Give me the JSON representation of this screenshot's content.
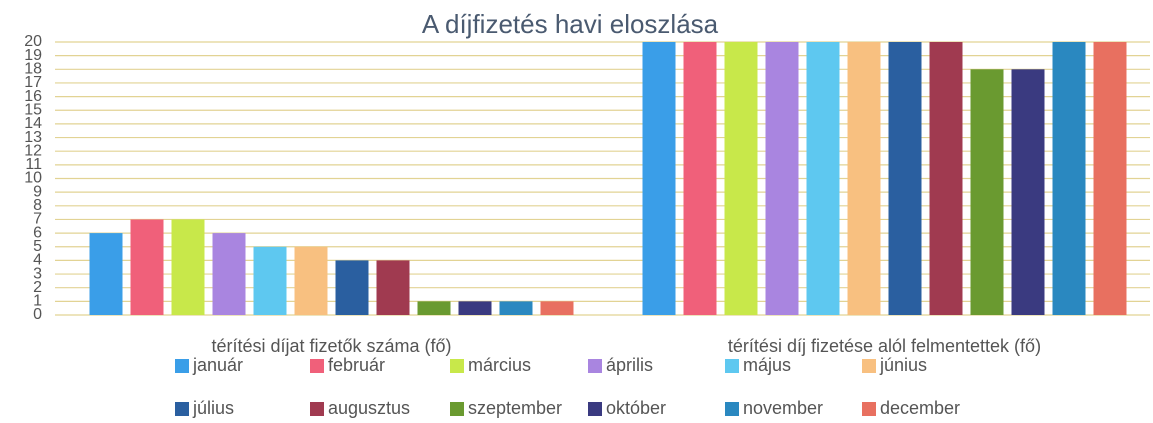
{
  "chart_data": {
    "type": "bar",
    "title": "A díjfizetés  havi eloszlása",
    "categories": [
      "térítési díjat fizetők száma (fő)",
      "térítési díj fizetése alól felmentettek (fő)"
    ],
    "series": [
      {
        "name": "január",
        "color": "#3a9ee8",
        "values": [
          6,
          20
        ]
      },
      {
        "name": "február",
        "color": "#f0607a",
        "values": [
          7,
          20
        ]
      },
      {
        "name": "március",
        "color": "#c8e84a",
        "values": [
          7,
          20
        ]
      },
      {
        "name": "április",
        "color": "#a985e0",
        "values": [
          6,
          20
        ]
      },
      {
        "name": "május",
        "color": "#5ec8f0",
        "values": [
          5,
          20
        ]
      },
      {
        "name": "június",
        "color": "#f8c080",
        "values": [
          5,
          20
        ]
      },
      {
        "name": "július",
        "color": "#2a5fa0",
        "values": [
          4,
          20
        ]
      },
      {
        "name": "augusztus",
        "color": "#a03a50",
        "values": [
          4,
          20
        ]
      },
      {
        "name": "szeptember",
        "color": "#6a9a30",
        "values": [
          1,
          18
        ]
      },
      {
        "name": "október",
        "color": "#3a3a80",
        "values": [
          1,
          18
        ]
      },
      {
        "name": "november",
        "color": "#2a88c0",
        "values": [
          1,
          20
        ]
      },
      {
        "name": "december",
        "color": "#e87060",
        "values": [
          1,
          20
        ]
      }
    ],
    "ylim": [
      0,
      20
    ],
    "yticks": [
      0,
      1,
      2,
      3,
      4,
      5,
      6,
      7,
      8,
      9,
      10,
      11,
      12,
      13,
      14,
      15,
      16,
      17,
      18,
      19,
      20
    ],
    "grid": true
  }
}
